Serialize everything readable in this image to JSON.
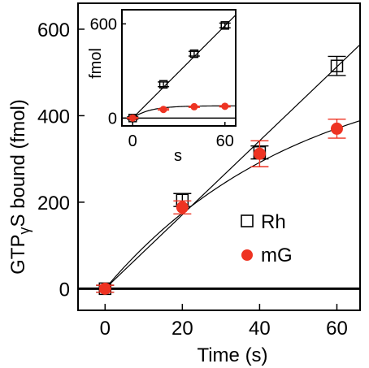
{
  "colors": {
    "axis": "#000000",
    "rh": "#000000",
    "mg": "#ee3322",
    "background": "#ffffff"
  },
  "chart_data": [
    {
      "id": "main",
      "type": "scatter",
      "xlabel": "Time (s)",
      "ylabel_parts": {
        "before": "GTP",
        "sub": "γ",
        "after": "S bound (fmol)"
      },
      "xlim": [
        -7,
        66
      ],
      "ylim": [
        -50,
        660
      ],
      "xticks": [
        0,
        20,
        40,
        60
      ],
      "yticks": [
        0,
        200,
        400,
        600
      ],
      "baseline_y": 0,
      "legend_position": "center-right",
      "series": [
        {
          "name": "Rh",
          "marker": "open-square",
          "color": "#000000",
          "x": [
            0,
            20,
            40,
            60
          ],
          "y": [
            0,
            205,
            315,
            515
          ],
          "err": [
            8,
            15,
            15,
            22
          ],
          "fit": "linear",
          "fit_slope": 8.55
        },
        {
          "name": "mG",
          "marker": "filled-circle",
          "color": "#ee3322",
          "x": [
            0,
            20,
            40,
            60
          ],
          "y": [
            0,
            188,
            312,
            370
          ],
          "err": [
            8,
            15,
            30,
            22
          ],
          "fit": "saturating",
          "fit_a": 530,
          "fit_k": 0.02
        }
      ]
    },
    {
      "id": "inset",
      "type": "scatter",
      "xlabel": "s",
      "ylabel": "fmol",
      "xlim": [
        -7,
        67
      ],
      "ylim": [
        -50,
        690
      ],
      "xticks": [
        0,
        60
      ],
      "yticks": [
        0,
        600
      ],
      "baseline_y": 0,
      "series": [
        {
          "name": "Rh",
          "marker": "open-square",
          "color": "#000000",
          "x": [
            0,
            20,
            40,
            60
          ],
          "y": [
            0,
            215,
            410,
            590
          ],
          "err": [
            8,
            15,
            15,
            15
          ],
          "fit": "linear",
          "fit_slope": 9.8
        },
        {
          "name": "mG",
          "marker": "filled-circle",
          "color": "#ee3322",
          "x": [
            0,
            20,
            40,
            60
          ],
          "y": [
            0,
            55,
            72,
            75
          ],
          "err": [
            4,
            4,
            4,
            4
          ],
          "fit": "saturating",
          "fit_a": 78,
          "fit_k": 0.09
        }
      ]
    }
  ]
}
